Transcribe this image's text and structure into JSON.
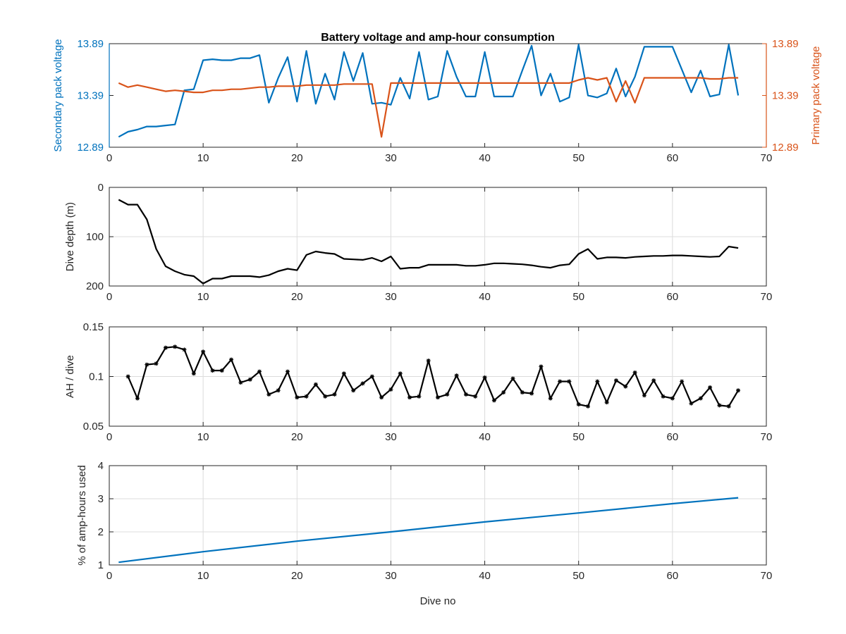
{
  "chart_data": [
    {
      "type": "line",
      "title": "Battery voltage and amp-hour consumption",
      "xlim": [
        0,
        70
      ],
      "x_ticks": [
        0,
        10,
        20,
        30,
        40,
        50,
        60,
        70
      ],
      "grid": false,
      "left_axis": {
        "ylabel": "Secondary pack voltage",
        "ylim": [
          12.89,
          13.89
        ],
        "ticks": [
          "12.89",
          "13.39",
          "13.89"
        ],
        "color": "#0072BD"
      },
      "right_axis": {
        "ylabel": "Primary pack voltage",
        "ylim": [
          12.89,
          13.89
        ],
        "ticks": [
          "12.89",
          "13.39",
          "13.89"
        ],
        "color": "#D95319"
      },
      "series": [
        {
          "axis": "left",
          "color": "#0072BD",
          "x": [
            1,
            2,
            3,
            4,
            5,
            6,
            7,
            8,
            9,
            10,
            11,
            12,
            13,
            14,
            15,
            16,
            17,
            18,
            19,
            20,
            21,
            22,
            23,
            24,
            25,
            26,
            27,
            28,
            29,
            30,
            31,
            32,
            33,
            34,
            35,
            36,
            37,
            38,
            39,
            40,
            41,
            42,
            43,
            44,
            45,
            46,
            47,
            48,
            49,
            50,
            51,
            52,
            53,
            54,
            55,
            56,
            57,
            58,
            59,
            60,
            61,
            62,
            63,
            64,
            65,
            66,
            67
          ],
          "values": [
            12.99,
            13.04,
            13.06,
            13.09,
            13.09,
            13.1,
            13.11,
            13.44,
            13.45,
            13.73,
            13.74,
            13.73,
            13.73,
            13.75,
            13.75,
            13.78,
            13.32,
            13.56,
            13.76,
            13.33,
            13.82,
            13.31,
            13.6,
            13.35,
            13.81,
            13.53,
            13.8,
            13.31,
            13.32,
            13.3,
            13.56,
            13.36,
            13.81,
            13.35,
            13.38,
            13.82,
            13.57,
            13.38,
            13.38,
            13.81,
            13.38,
            13.38,
            13.38,
            13.63,
            13.87,
            13.39,
            13.6,
            13.33,
            13.37,
            13.88,
            13.39,
            13.37,
            13.41,
            13.65,
            13.38,
            13.57,
            13.86,
            13.86,
            13.86,
            13.86,
            13.64,
            13.42,
            13.63,
            13.38,
            13.4,
            13.88,
            13.39
          ]
        },
        {
          "axis": "right",
          "color": "#D95319",
          "x": [
            1,
            2,
            3,
            4,
            5,
            6,
            7,
            8,
            9,
            10,
            11,
            12,
            13,
            14,
            15,
            16,
            17,
            18,
            19,
            20,
            21,
            22,
            23,
            24,
            25,
            26,
            27,
            28,
            29,
            30,
            31,
            32,
            33,
            34,
            35,
            36,
            37,
            38,
            39,
            40,
            41,
            42,
            43,
            44,
            45,
            46,
            47,
            48,
            49,
            50,
            51,
            52,
            53,
            54,
            55,
            56,
            57,
            58,
            59,
            60,
            61,
            62,
            63,
            64,
            65,
            66,
            67
          ],
          "values": [
            13.51,
            13.47,
            13.49,
            13.47,
            13.45,
            13.43,
            13.44,
            13.43,
            13.42,
            13.42,
            13.44,
            13.44,
            13.45,
            13.45,
            13.46,
            13.47,
            13.47,
            13.48,
            13.48,
            13.48,
            13.49,
            13.49,
            13.49,
            13.49,
            13.5,
            13.5,
            13.5,
            13.5,
            12.99,
            13.51,
            13.51,
            13.51,
            13.51,
            13.51,
            13.51,
            13.51,
            13.51,
            13.51,
            13.51,
            13.51,
            13.51,
            13.51,
            13.51,
            13.51,
            13.51,
            13.51,
            13.51,
            13.51,
            13.51,
            13.54,
            13.56,
            13.54,
            13.56,
            13.33,
            13.53,
            13.32,
            13.56,
            13.56,
            13.56,
            13.56,
            13.56,
            13.56,
            13.56,
            13.55,
            13.55,
            13.56,
            13.56
          ]
        }
      ]
    },
    {
      "type": "line",
      "ylabel": "Dive depth (m)",
      "ylim": [
        0,
        200
      ],
      "y_reversed": true,
      "y_ticks": [
        0,
        100,
        200
      ],
      "xlim": [
        0,
        70
      ],
      "x_ticks": [
        0,
        10,
        20,
        30,
        40,
        50,
        60,
        70
      ],
      "grid": true,
      "series": [
        {
          "color": "#000000",
          "x": [
            1,
            2,
            3,
            4,
            5,
            6,
            7,
            8,
            9,
            10,
            11,
            12,
            13,
            14,
            15,
            16,
            17,
            18,
            19,
            20,
            21,
            22,
            23,
            24,
            25,
            26,
            27,
            28,
            29,
            30,
            31,
            32,
            33,
            34,
            35,
            36,
            37,
            38,
            39,
            40,
            41,
            42,
            43,
            44,
            45,
            46,
            47,
            48,
            49,
            50,
            51,
            52,
            53,
            54,
            55,
            56,
            57,
            58,
            59,
            60,
            61,
            62,
            63,
            64,
            65,
            66,
            67
          ],
          "values": [
            25,
            35,
            35,
            65,
            125,
            160,
            170,
            177,
            180,
            195,
            185,
            185,
            180,
            180,
            180,
            182,
            178,
            170,
            165,
            168,
            137,
            130,
            133,
            135,
            145,
            146,
            147,
            143,
            150,
            140,
            165,
            163,
            163,
            157,
            157,
            157,
            157,
            159,
            159,
            157,
            154,
            154,
            155,
            156,
            158,
            161,
            163,
            158,
            156,
            135,
            125,
            145,
            142,
            142,
            143,
            141,
            140,
            139,
            139,
            138,
            138,
            139,
            140,
            141,
            140,
            120,
            123
          ]
        }
      ]
    },
    {
      "type": "line",
      "ylabel": "AH / dive",
      "ylim": [
        0.05,
        0.15
      ],
      "y_ticks": [
        "0.05",
        "0.1",
        "0.15"
      ],
      "xlim": [
        0,
        70
      ],
      "x_ticks": [
        0,
        10,
        20,
        30,
        40,
        50,
        60,
        70
      ],
      "grid": true,
      "marker": "*",
      "series": [
        {
          "color": "#000000",
          "x": [
            2,
            3,
            4,
            5,
            6,
            7,
            8,
            9,
            10,
            11,
            12,
            13,
            14,
            15,
            16,
            17,
            18,
            19,
            20,
            21,
            22,
            23,
            24,
            25,
            26,
            27,
            28,
            29,
            30,
            31,
            32,
            33,
            34,
            35,
            36,
            37,
            38,
            39,
            40,
            41,
            42,
            43,
            44,
            45,
            46,
            47,
            48,
            49,
            50,
            51,
            52,
            53,
            54,
            55,
            56,
            57,
            58,
            59,
            60,
            61,
            62,
            63,
            64,
            65,
            66,
            67
          ],
          "values": [
            0.1,
            0.078,
            0.112,
            0.113,
            0.129,
            0.13,
            0.127,
            0.103,
            0.125,
            0.106,
            0.106,
            0.117,
            0.094,
            0.097,
            0.105,
            0.082,
            0.086,
            0.105,
            0.079,
            0.08,
            0.092,
            0.08,
            0.082,
            0.103,
            0.086,
            0.093,
            0.1,
            0.079,
            0.087,
            0.103,
            0.079,
            0.08,
            0.116,
            0.079,
            0.082,
            0.101,
            0.082,
            0.08,
            0.099,
            0.076,
            0.084,
            0.098,
            0.084,
            0.083,
            0.11,
            0.078,
            0.095,
            0.095,
            0.072,
            0.07,
            0.095,
            0.074,
            0.096,
            0.09,
            0.104,
            0.081,
            0.096,
            0.08,
            0.078,
            0.095,
            0.073,
            0.078,
            0.089,
            0.071,
            0.07,
            0.086
          ]
        }
      ]
    },
    {
      "type": "line",
      "ylabel": "% of amp-hours used",
      "xlabel": "Dive no",
      "ylim": [
        1,
        4
      ],
      "y_ticks": [
        1,
        2,
        3,
        4
      ],
      "xlim": [
        0,
        70
      ],
      "x_ticks": [
        0,
        10,
        20,
        30,
        40,
        50,
        60,
        70
      ],
      "grid": true,
      "series": [
        {
          "color": "#0072BD",
          "x": [
            1,
            10,
            20,
            30,
            40,
            50,
            60,
            67
          ],
          "values": [
            1.08,
            1.4,
            1.72,
            2.0,
            2.3,
            2.57,
            2.85,
            3.03
          ]
        }
      ]
    }
  ]
}
